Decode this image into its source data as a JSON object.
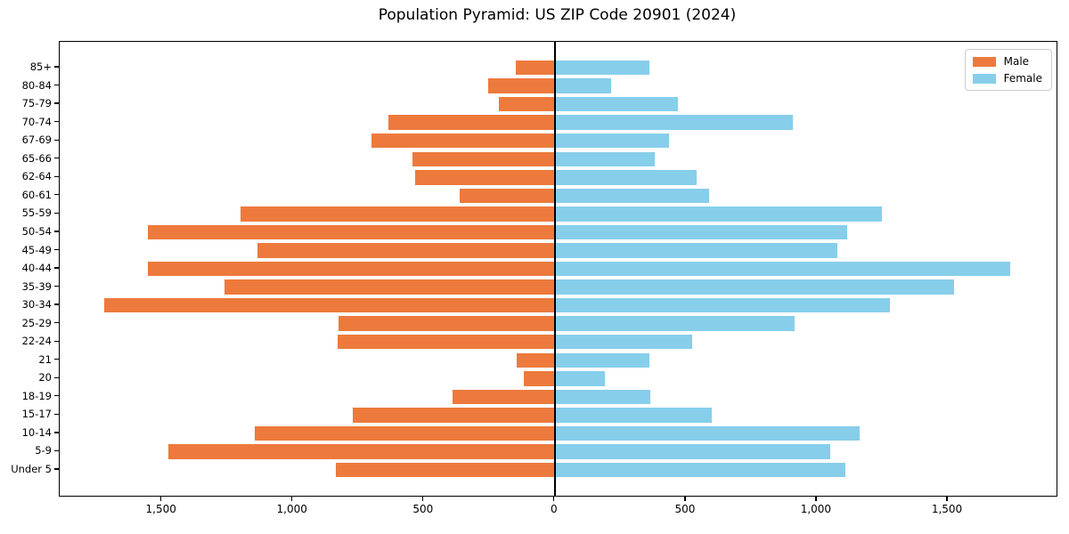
{
  "title": "Population Pyramid: US ZIP Code 20901 (2024)",
  "legend": {
    "male_label": "Male",
    "female_label": "Female"
  },
  "colors": {
    "male": "#ED7A3C",
    "female": "#87CEEB",
    "axis": "#000000",
    "legend_border": "#CCCCCC",
    "background": "#FFFFFF"
  },
  "chart_data": {
    "type": "bar",
    "subtype": "population-pyramid-horizontal",
    "title": "Population Pyramid: US ZIP Code 20901 (2024)",
    "categories_top_to_bottom": [
      "85+",
      "80-84",
      "75-79",
      "70-74",
      "67-69",
      "65-66",
      "62-64",
      "60-61",
      "55-59",
      "50-54",
      "45-49",
      "40-44",
      "35-39",
      "30-34",
      "25-29",
      "22-24",
      "21",
      "20",
      "18-19",
      "15-17",
      "10-14",
      "5-9",
      "Under 5"
    ],
    "series": [
      {
        "name": "Male",
        "side": "left",
        "color": "#ED7A3C",
        "values": [
          150,
          255,
          215,
          635,
          700,
          545,
          535,
          365,
          1200,
          1555,
          1135,
          1555,
          1260,
          1720,
          825,
          830,
          145,
          120,
          390,
          770,
          1145,
          1475,
          835
        ]
      },
      {
        "name": "Female",
        "side": "right",
        "color": "#87CEEB",
        "values": [
          360,
          215,
          470,
          910,
          435,
          380,
          540,
          590,
          1250,
          1115,
          1080,
          1740,
          1525,
          1280,
          915,
          525,
          360,
          190,
          365,
          600,
          1165,
          1050,
          1110
        ]
      }
    ],
    "xlabel": "",
    "ylabel": "",
    "xlim": [
      -1890,
      1915
    ],
    "xticks": [
      -1500,
      -1000,
      -500,
      0,
      500,
      1000,
      1500
    ],
    "xtick_labels": [
      "1,500",
      "1,000",
      "500",
      "0",
      "500",
      "1,000",
      "1,500"
    ],
    "grid": false,
    "legend_position": "upper right",
    "zero_axis_line": true
  }
}
